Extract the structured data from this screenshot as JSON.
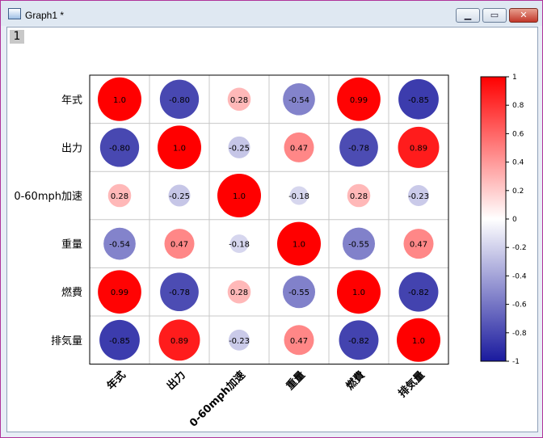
{
  "window": {
    "title": "Graph1 *",
    "layer_tab": "1"
  },
  "colors": {
    "positive": "#ff0000",
    "negative": "#1a1a9e",
    "neutral": "#ffffff",
    "grid": "#c8c8c8"
  },
  "chart_data": {
    "type": "heatmap",
    "title": "",
    "variables": [
      "年式",
      "出力",
      "0-60mph加速",
      "重量",
      "燃費",
      "排気量"
    ],
    "matrix": [
      [
        1.0,
        -0.8,
        0.28,
        -0.54,
        0.99,
        -0.85
      ],
      [
        -0.8,
        1.0,
        -0.25,
        0.47,
        -0.78,
        0.89
      ],
      [
        0.28,
        -0.25,
        1.0,
        -0.18,
        0.28,
        -0.23
      ],
      [
        -0.54,
        0.47,
        -0.18,
        1.0,
        -0.55,
        0.47
      ],
      [
        0.99,
        -0.78,
        0.28,
        -0.55,
        1.0,
        -0.82
      ],
      [
        -0.85,
        0.89,
        -0.23,
        0.47,
        -0.82,
        1.0
      ]
    ],
    "cell_labels": [
      [
        "1.0",
        "-0.80",
        "0.28",
        "-0.54",
        "0.99",
        "-0.85"
      ],
      [
        "-0.80",
        "1.0",
        "-0.25",
        "0.47",
        "-0.78",
        "0.89"
      ],
      [
        "0.28",
        "-0.25",
        "1.0",
        "-0.18",
        "0.28",
        "-0.23"
      ],
      [
        "-0.54",
        "0.47",
        "-0.18",
        "1.0",
        "-0.55",
        "0.47"
      ],
      [
        "0.99",
        "-0.78",
        "0.28",
        "-0.55",
        "1.0",
        "-0.82"
      ],
      [
        "-0.85",
        "0.89",
        "-0.23",
        "0.47",
        "-0.82",
        "1.0"
      ]
    ],
    "colorbar": {
      "range": [
        -1,
        1
      ],
      "ticks": [
        "1",
        "0.8",
        "0.6",
        "0.4",
        "0.2",
        "0",
        "-0.2",
        "-0.4",
        "-0.6",
        "-0.8",
        "-1"
      ],
      "legend_position": "right"
    },
    "grid": true
  }
}
